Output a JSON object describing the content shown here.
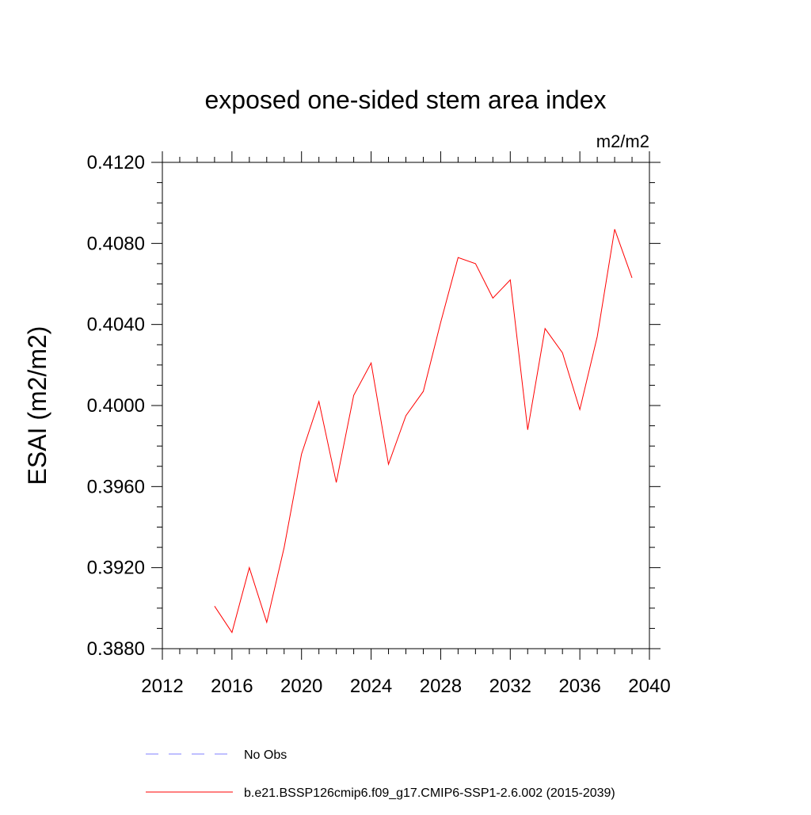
{
  "chart_data": {
    "type": "line",
    "title": "exposed one-sided stem area index",
    "units": "m2/m2",
    "ylabel": "ESAI  (m2/m2)",
    "xlabel": "",
    "xlim": [
      2012,
      2040
    ],
    "ylim": [
      0.388,
      0.412
    ],
    "x_ticks": [
      "2012",
      "2016",
      "2020",
      "2024",
      "2028",
      "2032",
      "2036",
      "2040"
    ],
    "y_ticks": [
      "0.3880",
      "0.3920",
      "0.3960",
      "0.4000",
      "0.4040",
      "0.4080",
      "0.4120"
    ],
    "grid": false,
    "legend_position": "bottom-left",
    "series": [
      {
        "name": "b.e21.BSSP126cmip6.f09_g17.CMIP6-SSP1-2.6.002 (2015-2039)",
        "color": "#ff0000",
        "style": "solid",
        "x": [
          2015,
          2016,
          2017,
          2018,
          2019,
          2020,
          2021,
          2022,
          2023,
          2024,
          2025,
          2026,
          2027,
          2028,
          2029,
          2030,
          2031,
          2032,
          2033,
          2034,
          2035,
          2036,
          2037,
          2038,
          2039
        ],
        "values": [
          0.3901,
          0.3888,
          0.392,
          0.3893,
          0.393,
          0.3976,
          0.4002,
          0.3962,
          0.4005,
          0.4021,
          0.3971,
          0.3995,
          0.4007,
          0.4041,
          0.4073,
          0.407,
          0.4053,
          0.4062,
          0.3988,
          0.4038,
          0.4026,
          0.3998,
          0.4034,
          0.4087,
          0.4063
        ]
      }
    ],
    "legend": [
      {
        "label": "No Obs",
        "color": "#8080ff",
        "style": "dashed"
      },
      {
        "label": "b.e21.BSSP126cmip6.f09_g17.CMIP6-SSP1-2.6.002 (2015-2039)",
        "color": "#ff0000",
        "style": "solid"
      }
    ]
  }
}
